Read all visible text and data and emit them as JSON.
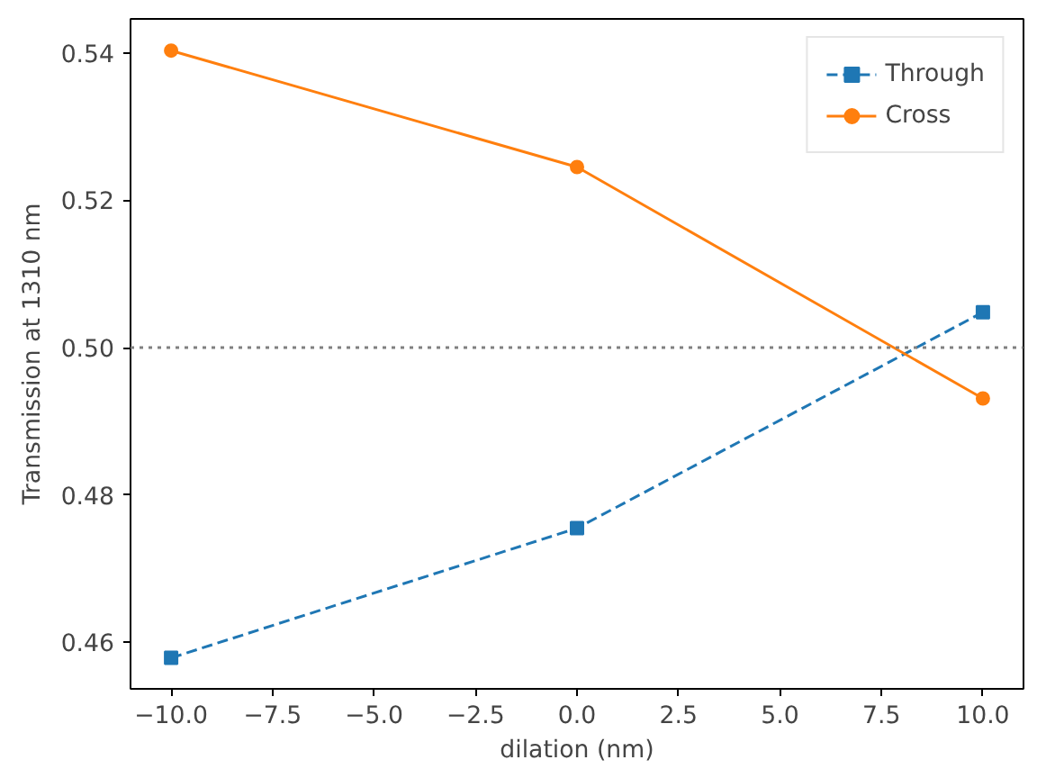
{
  "chart_data": {
    "type": "line",
    "xlabel": "dilation (nm)",
    "ylabel": "Transmission at 1310 nm",
    "x": [
      -10,
      0,
      10
    ],
    "series": [
      {
        "name": "Through",
        "color": "#1f77b4",
        "values": [
          0.4579,
          0.4755,
          0.5048
        ],
        "marker": "square",
        "line_style": "dashed"
      },
      {
        "name": "Cross",
        "color": "#ff7f0e",
        "values": [
          0.5403,
          0.5245,
          0.4931
        ],
        "marker": "circle",
        "line_style": "solid"
      }
    ],
    "xlim": [
      -11,
      11
    ],
    "ylim": [
      0.4537,
      0.5446
    ],
    "xticks": [
      {
        "value": -10,
        "label": "−10.0"
      },
      {
        "value": -7.5,
        "label": "−7.5"
      },
      {
        "value": -5,
        "label": "−5.0"
      },
      {
        "value": -2.5,
        "label": "−2.5"
      },
      {
        "value": 0,
        "label": "0.0"
      },
      {
        "value": 2.5,
        "label": "2.5"
      },
      {
        "value": 5,
        "label": "5.0"
      },
      {
        "value": 7.5,
        "label": "7.5"
      },
      {
        "value": 10,
        "label": "10.0"
      }
    ],
    "yticks": [
      {
        "value": 0.46,
        "label": "0.46"
      },
      {
        "value": 0.48,
        "label": "0.48"
      },
      {
        "value": 0.5,
        "label": "0.50"
      },
      {
        "value": 0.52,
        "label": "0.52"
      },
      {
        "value": 0.54,
        "label": "0.54"
      }
    ],
    "ref_lines": [
      {
        "axis": "y",
        "value": 0.5,
        "color": "#808080",
        "line_style": "dotted"
      }
    ],
    "legend": "top right",
    "grid": false
  }
}
